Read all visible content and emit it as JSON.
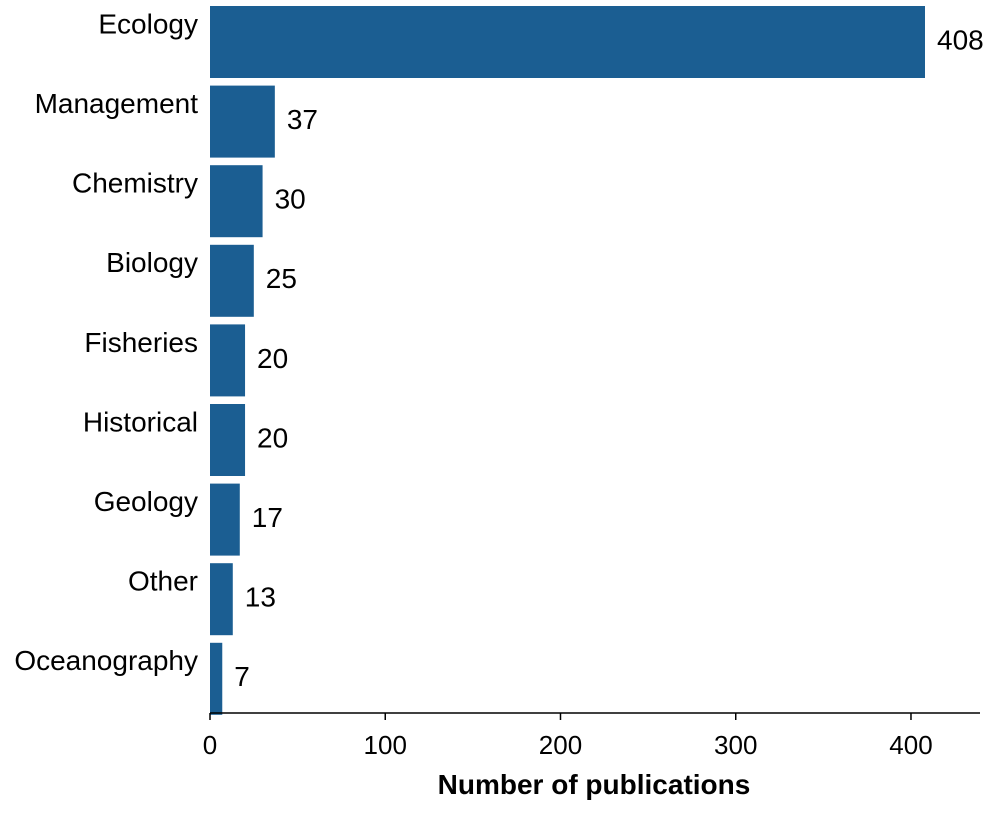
{
  "chart_data": {
    "type": "bar",
    "orientation": "horizontal",
    "categories": [
      "Ecology",
      "Management",
      "Chemistry",
      "Biology",
      "Fisheries",
      "Historical",
      "Geology",
      "Other",
      "Oceanography"
    ],
    "values": [
      408,
      37,
      30,
      25,
      20,
      20,
      17,
      13,
      7
    ],
    "data_labels": [
      "408",
      "37",
      "30",
      "25",
      "20",
      "20",
      "17",
      "13",
      "7"
    ],
    "xlabel": "Number of publications",
    "ylabel": "",
    "xlim": [
      0,
      440
    ],
    "xticks": [
      0,
      100,
      200,
      300,
      400
    ],
    "xtick_labels": [
      "0",
      "100",
      "200",
      "300",
      "400"
    ],
    "grid": false,
    "bar_color": "#1b5e92"
  }
}
